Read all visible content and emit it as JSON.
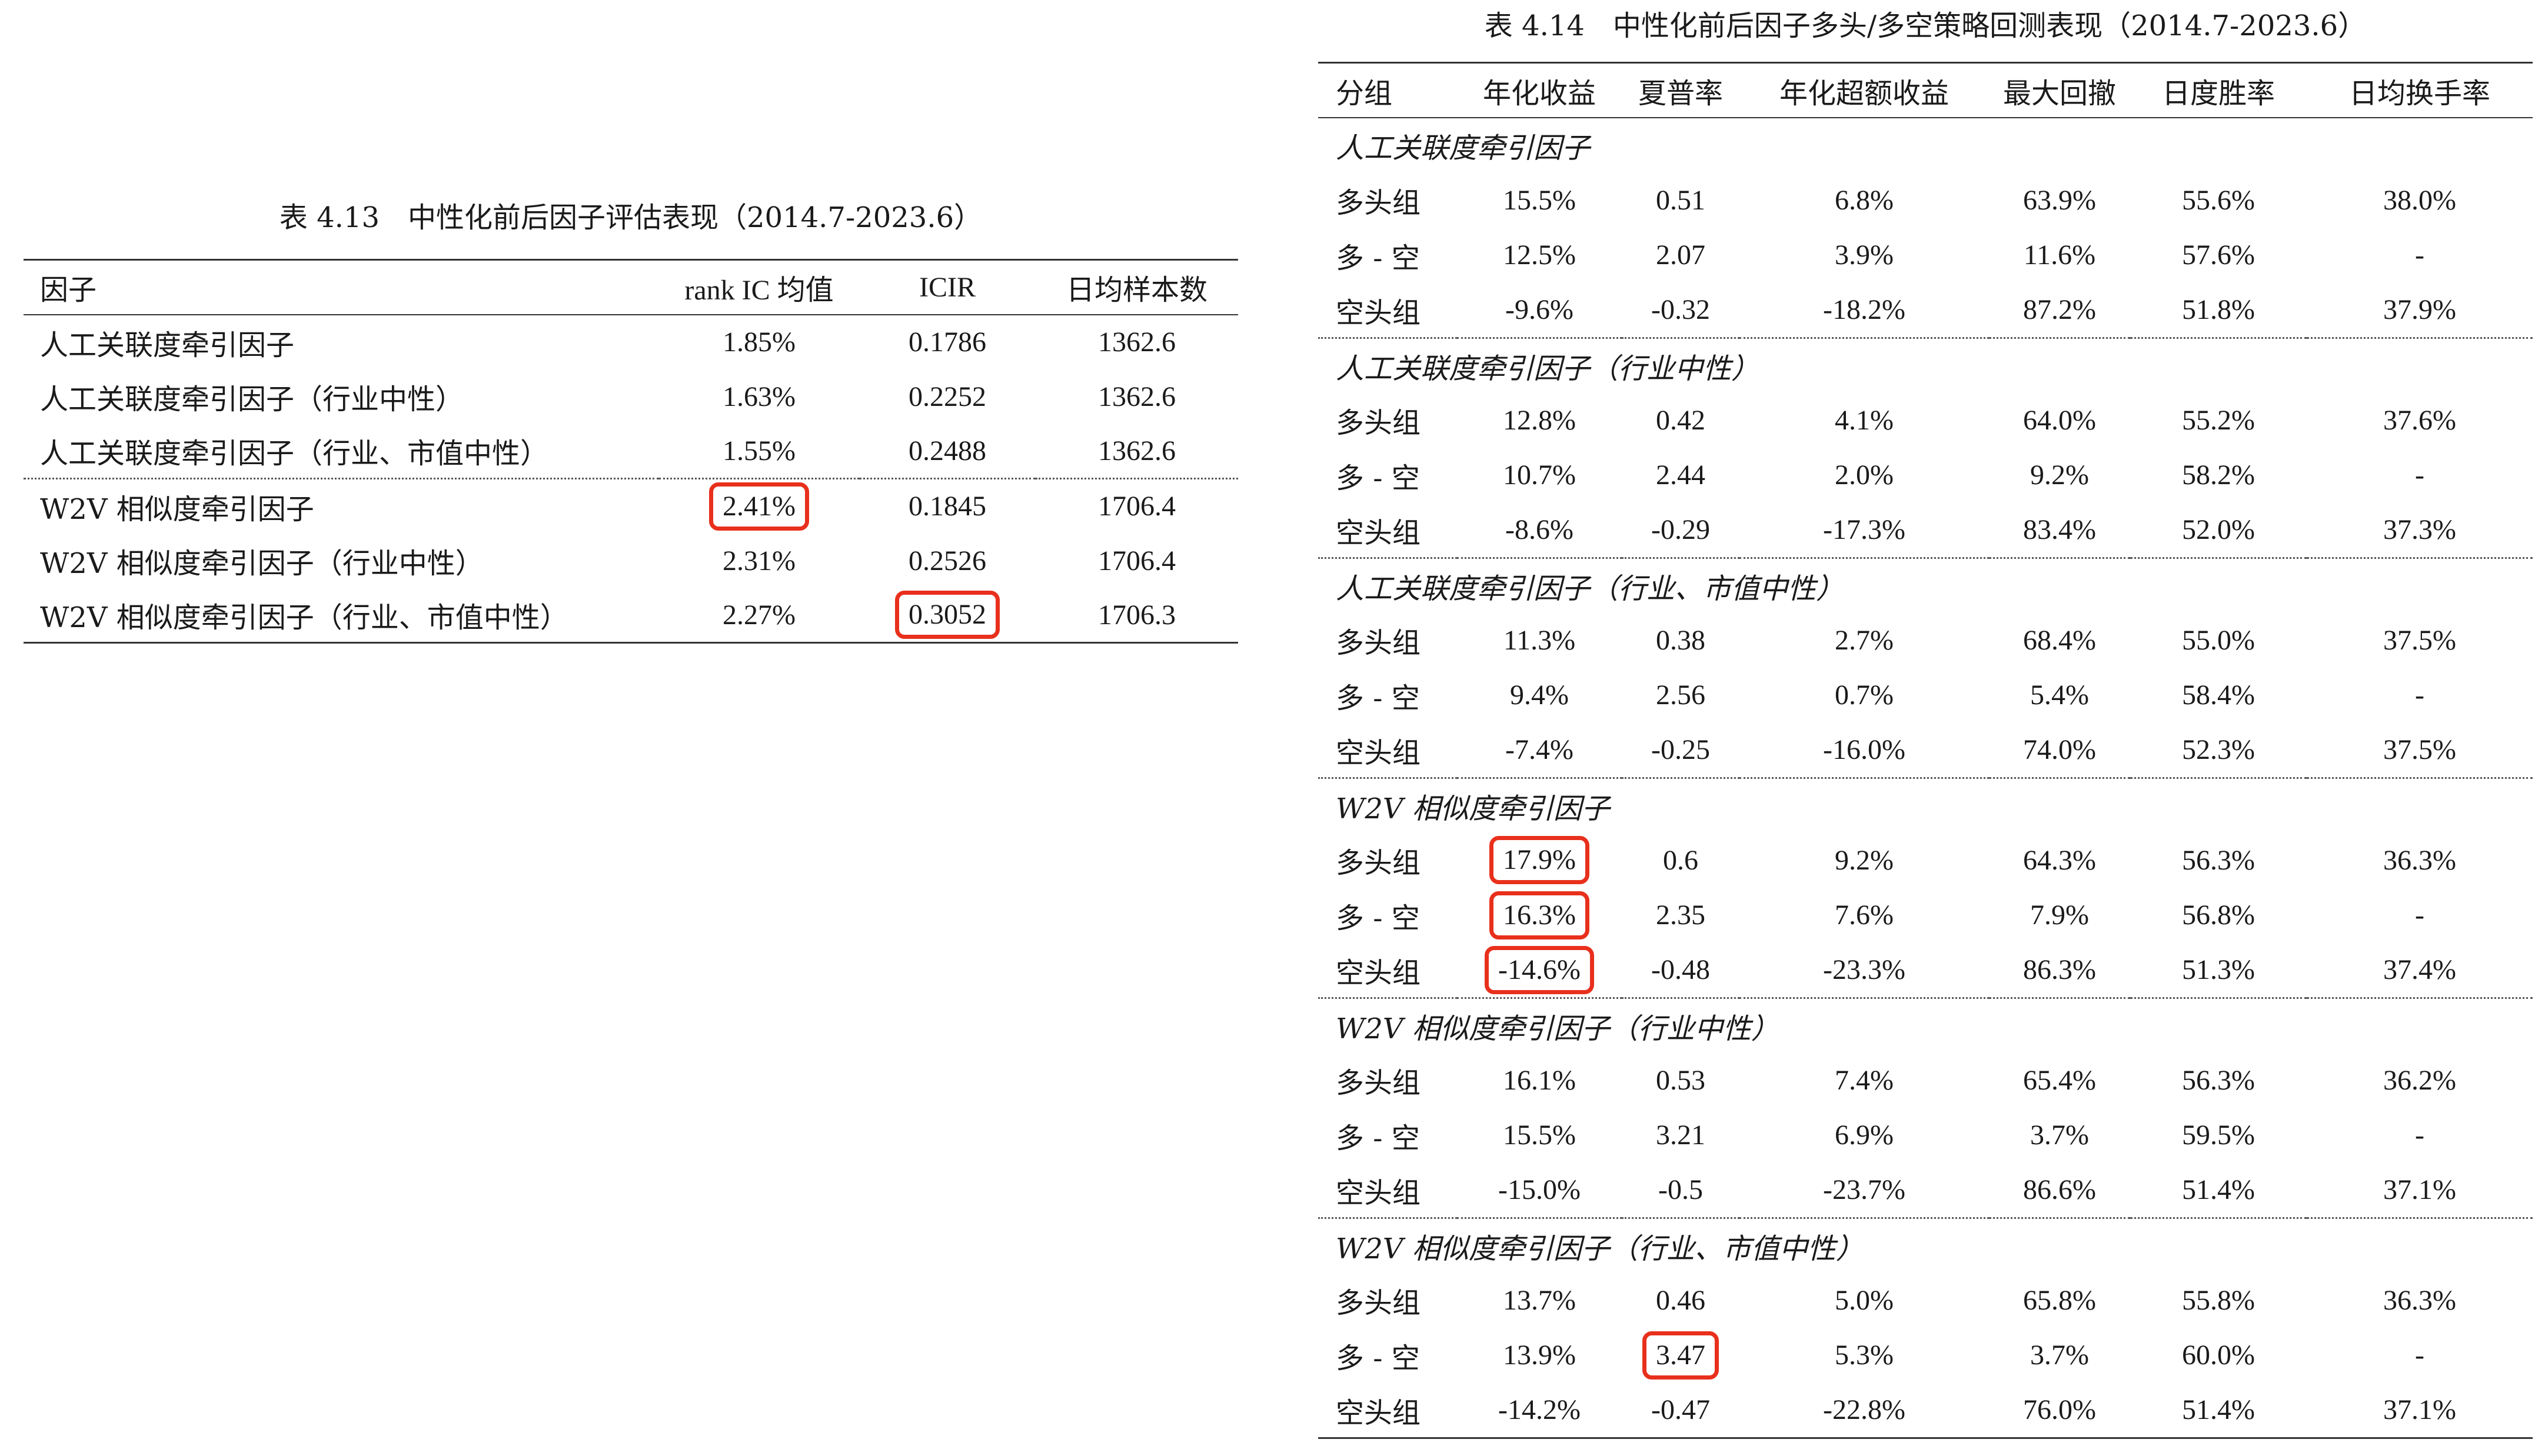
{
  "table_413": {
    "caption": "表 4.13　中性化前后因子评估表现（2014.7-2023.6）",
    "headers": [
      "因子",
      "rank IC 均值",
      "ICIR",
      "日均样本数"
    ],
    "rows": [
      {
        "name": "人工关联度牵引因子",
        "ic": "1.85%",
        "icir": "0.1786",
        "n": "1362.6"
      },
      {
        "name": "人工关联度牵引因子（行业中性）",
        "ic": "1.63%",
        "icir": "0.2252",
        "n": "1362.6"
      },
      {
        "name": "人工关联度牵引因子（行业、市值中性）",
        "ic": "1.55%",
        "icir": "0.2488",
        "n": "1362.6"
      },
      {
        "name": "W2V 相似度牵引因子",
        "ic": "2.41%",
        "icir": "0.1845",
        "n": "1706.4"
      },
      {
        "name": "W2V 相似度牵引因子（行业中性）",
        "ic": "2.31%",
        "icir": "0.2526",
        "n": "1706.4"
      },
      {
        "name": "W2V 相似度牵引因子（行业、市值中性）",
        "ic": "2.27%",
        "icir": "0.3052",
        "n": "1706.3"
      }
    ]
  },
  "table_414": {
    "caption": "表 4.14　中性化前后因子多头/多空策略回测表现（2014.7-2023.6）",
    "headers": [
      "分组",
      "年化收益",
      "夏普率",
      "年化超额收益",
      "最大回撤",
      "日度胜率",
      "日均换手率"
    ],
    "groups": [
      {
        "title": "人工关联度牵引因子",
        "rows": [
          [
            "多头组",
            "15.5%",
            "0.51",
            "6.8%",
            "63.9%",
            "55.6%",
            "38.0%"
          ],
          [
            "多 - 空",
            "12.5%",
            "2.07",
            "3.9%",
            "11.6%",
            "57.6%",
            "-"
          ],
          [
            "空头组",
            "-9.6%",
            "-0.32",
            "-18.2%",
            "87.2%",
            "51.8%",
            "37.9%"
          ]
        ]
      },
      {
        "title": "人工关联度牵引因子（行业中性）",
        "rows": [
          [
            "多头组",
            "12.8%",
            "0.42",
            "4.1%",
            "64.0%",
            "55.2%",
            "37.6%"
          ],
          [
            "多 - 空",
            "10.7%",
            "2.44",
            "2.0%",
            "9.2%",
            "58.2%",
            "-"
          ],
          [
            "空头组",
            "-8.6%",
            "-0.29",
            "-17.3%",
            "83.4%",
            "52.0%",
            "37.3%"
          ]
        ]
      },
      {
        "title": "人工关联度牵引因子（行业、市值中性）",
        "rows": [
          [
            "多头组",
            "11.3%",
            "0.38",
            "2.7%",
            "68.4%",
            "55.0%",
            "37.5%"
          ],
          [
            "多 - 空",
            "9.4%",
            "2.56",
            "0.7%",
            "5.4%",
            "58.4%",
            "-"
          ],
          [
            "空头组",
            "-7.4%",
            "-0.25",
            "-16.0%",
            "74.0%",
            "52.3%",
            "37.5%"
          ]
        ]
      },
      {
        "title": "W2V 相似度牵引因子",
        "rows": [
          [
            "多头组",
            "17.9%",
            "0.6",
            "9.2%",
            "64.3%",
            "56.3%",
            "36.3%"
          ],
          [
            "多 - 空",
            "16.3%",
            "2.35",
            "7.6%",
            "7.9%",
            "56.8%",
            "-"
          ],
          [
            "空头组",
            "-14.6%",
            "-0.48",
            "-23.3%",
            "86.3%",
            "51.3%",
            "37.4%"
          ]
        ]
      },
      {
        "title": "W2V 相似度牵引因子（行业中性）",
        "rows": [
          [
            "多头组",
            "16.1%",
            "0.53",
            "7.4%",
            "65.4%",
            "56.3%",
            "36.2%"
          ],
          [
            "多 - 空",
            "15.5%",
            "3.21",
            "6.9%",
            "3.7%",
            "59.5%",
            "-"
          ],
          [
            "空头组",
            "-15.0%",
            "-0.5",
            "-23.7%",
            "86.6%",
            "51.4%",
            "37.1%"
          ]
        ]
      },
      {
        "title": "W2V 相似度牵引因子（行业、市值中性）",
        "rows": [
          [
            "多头组",
            "13.7%",
            "0.46",
            "5.0%",
            "65.8%",
            "55.8%",
            "36.3%"
          ],
          [
            "多 - 空",
            "13.9%",
            "3.47",
            "5.3%",
            "3.7%",
            "60.0%",
            "-"
          ],
          [
            "空头组",
            "-14.2%",
            "-0.47",
            "-22.8%",
            "76.0%",
            "51.4%",
            "37.1%"
          ]
        ]
      }
    ]
  },
  "highlight_color": "#e8301c"
}
